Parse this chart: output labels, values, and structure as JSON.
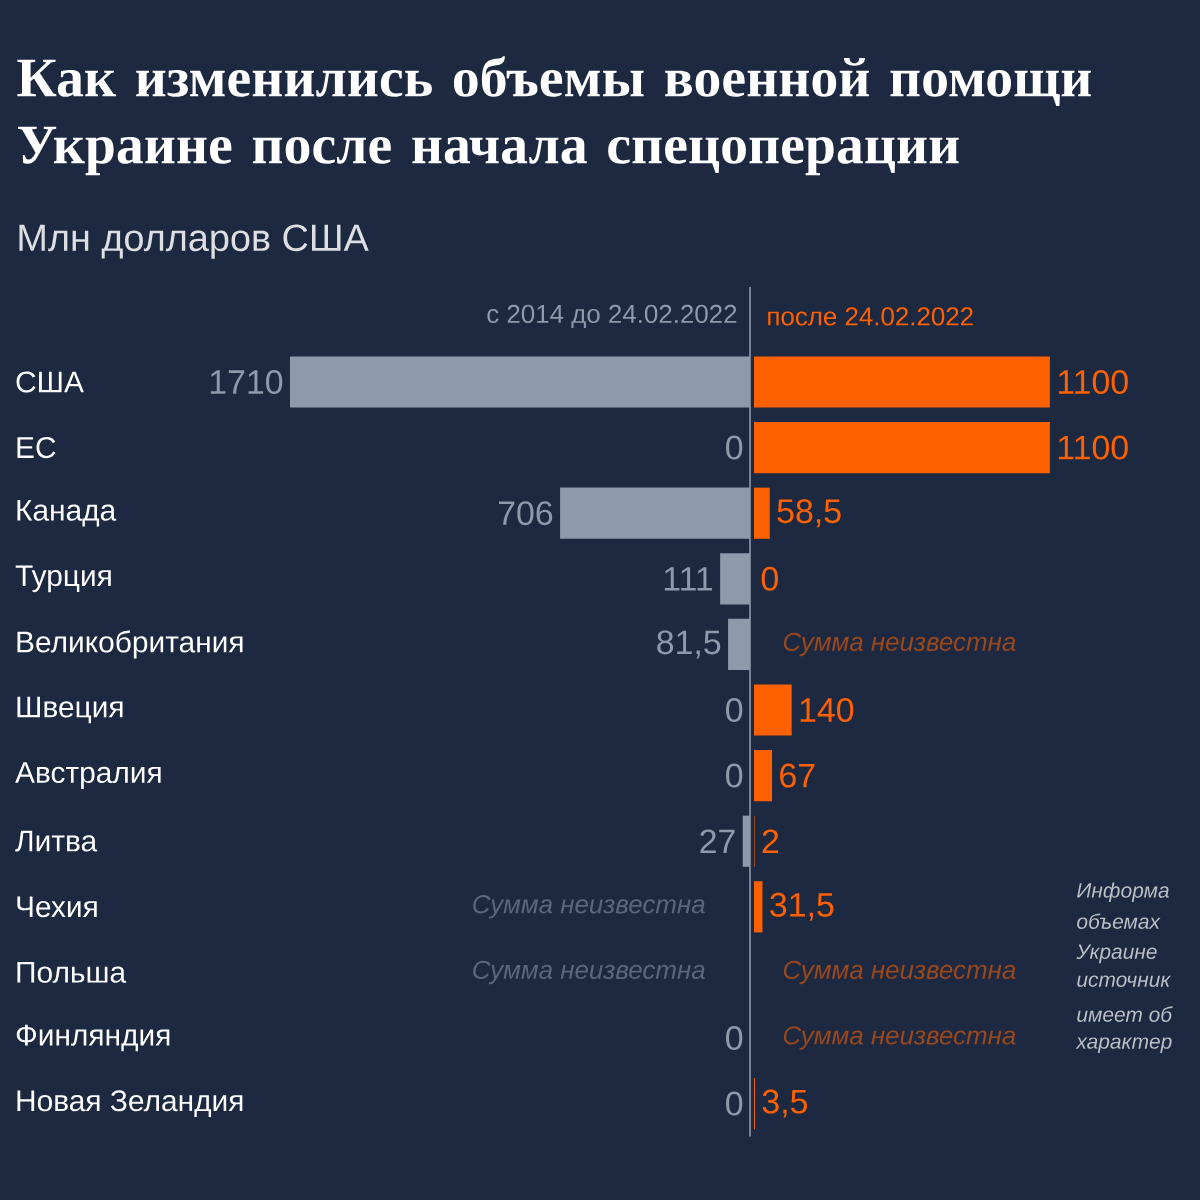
{
  "chart_data": [
    {
      "type": "bar",
      "orientation": "horizontal",
      "title": "Как изменились объемы военной помощи Украине после начала спецоперации",
      "subtitle": "Млн долларов США",
      "categories": [
        "США",
        "ЕС",
        "Канада",
        "Турция",
        "Великобритания",
        "Швеция",
        "Австралия",
        "Литва",
        "Чехия",
        "Польша",
        "Финляндия",
        "Новая Зеландия"
      ],
      "tick_labels": "y",
      "legend": "top",
      "series": [
        {
          "name": "с 2014 до 24.02.2022",
          "color": "#8d9aab",
          "values": [
            1710,
            0,
            706,
            111,
            81.5,
            0,
            0,
            27,
            null,
            null,
            0,
            0
          ],
          "value_labels": [
            "1710",
            "0",
            "706",
            "111",
            "81,5",
            "0",
            "0",
            "27",
            "Сумма неизвестна",
            "Сумма неизвестна",
            "0",
            "0"
          ]
        }
      ]
    },
    {
      "type": "bar",
      "orientation": "horizontal",
      "tick_labels": false,
      "legend": "top",
      "series": [
        {
          "name": "после 24.02.2022",
          "color": "#ff6000",
          "values": [
            1100,
            1100,
            58.5,
            0,
            null,
            140,
            67,
            2,
            31.5,
            null,
            null,
            3.5
          ],
          "value_labels": [
            "1100",
            "1100",
            "58,5",
            "0",
            "Сумма неизвестна",
            "140",
            "67",
            "2",
            "31,5",
            "Сумма неизвестна",
            "Сумма неизвестна",
            "3,5"
          ]
        }
      ],
      "annotations": [
        "Информа",
        "объемах",
        "Украине",
        "источник",
        "имеет об",
        "характер"
      ]
    }
  ]
}
